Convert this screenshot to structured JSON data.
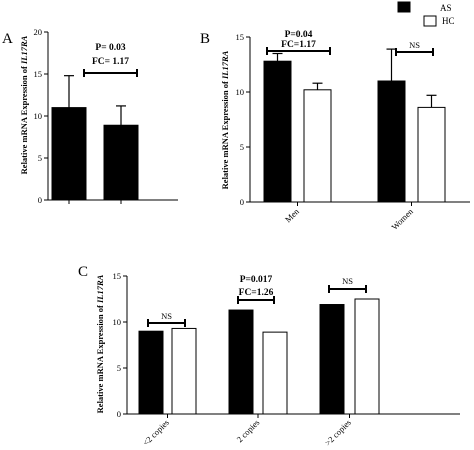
{
  "legend": {
    "entries": [
      {
        "label": "AS",
        "color": "#000000"
      },
      {
        "label": "HC",
        "color": "#ffffff"
      }
    ]
  },
  "chart_data": [
    {
      "panel": "A",
      "type": "bar",
      "categories": [
        "AS",
        "HC"
      ],
      "series": [
        {
          "values": [
            11.0,
            8.9
          ],
          "errors": [
            3.8,
            2.3
          ]
        }
      ],
      "ylabel_prefix": "Relative mRNA Expression of ",
      "ylabel_gene": "IL17RA",
      "ylim": [
        0,
        20
      ],
      "yticks": [
        0,
        5,
        10,
        15,
        20
      ],
      "annotations": [
        {
          "p": "P= 0.03",
          "fc": "FC= 1.17"
        }
      ],
      "grid": false
    },
    {
      "panel": "B",
      "type": "bar",
      "categories": [
        "Men",
        "Women"
      ],
      "series": [
        {
          "name": "AS",
          "values": [
            12.8,
            11.0
          ],
          "errors": [
            0.7,
            2.9
          ]
        },
        {
          "name": "HC",
          "values": [
            10.2,
            8.6
          ],
          "errors": [
            0.6,
            1.1
          ]
        }
      ],
      "ylabel_prefix": "Relative mRNA Expression of ",
      "ylabel_gene": "IL17RA",
      "ylim": [
        0,
        15
      ],
      "yticks": [
        0,
        5,
        10,
        15
      ],
      "annotations": [
        {
          "p": "P=0.04",
          "fc": "FC=1.17"
        },
        {
          "p": "NS",
          "fc": ""
        }
      ],
      "grid": false
    },
    {
      "panel": "C",
      "type": "bar",
      "categories": [
        "<2 copies",
        "2 copies",
        ">2 copies"
      ],
      "series": [
        {
          "name": "AS",
          "values": [
            9.0,
            11.3,
            11.9
          ]
        },
        {
          "name": "HC",
          "values": [
            9.3,
            8.9,
            12.5
          ]
        }
      ],
      "ylabel_prefix": "Relative mRNA Expression of ",
      "ylabel_gene": "IL17RA",
      "ylim": [
        0,
        15
      ],
      "yticks": [
        0,
        5,
        10,
        15
      ],
      "annotations": [
        {
          "p": "NS",
          "fc": ""
        },
        {
          "p": "P=0.017",
          "fc": "FC=1.26"
        },
        {
          "p": "NS",
          "fc": ""
        }
      ],
      "grid": false
    }
  ]
}
